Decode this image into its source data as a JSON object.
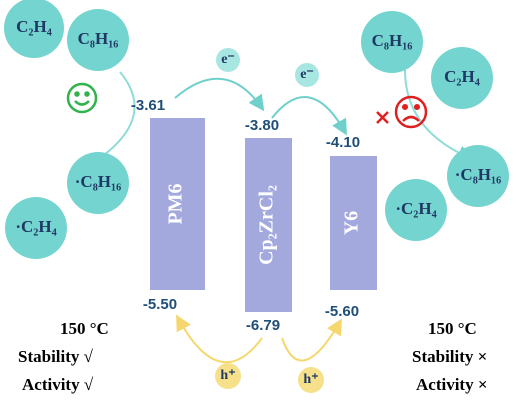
{
  "left": {
    "molecules": [
      "C₂H₄",
      "C₈H₁₆"
    ],
    "radicals": [
      "·C₈H₁₆",
      "·C₂H₄"
    ],
    "conditions": [
      "150 °C",
      "Stability √",
      "Activity √"
    ]
  },
  "right": {
    "molecules": [
      "C₈H₁₆",
      "C₂H₄"
    ],
    "radicals": [
      "·C₈H₁₆",
      "·C₂H₄"
    ],
    "conditions": [
      "150 °C",
      "Stability ×",
      "Activity ×"
    ]
  },
  "materials": [
    {
      "name": "PM6",
      "lumo": "-3.61",
      "homo": "-5.50"
    },
    {
      "name": "Cp₂ZrCl₂",
      "lumo": "-3.80",
      "homo": "-6.79"
    },
    {
      "name": "Y6",
      "lumo": "-4.10",
      "homo": "-5.60"
    }
  ],
  "electrons": [
    "e⁻",
    "e⁻"
  ],
  "holes": [
    "h⁺",
    "h⁺"
  ]
}
